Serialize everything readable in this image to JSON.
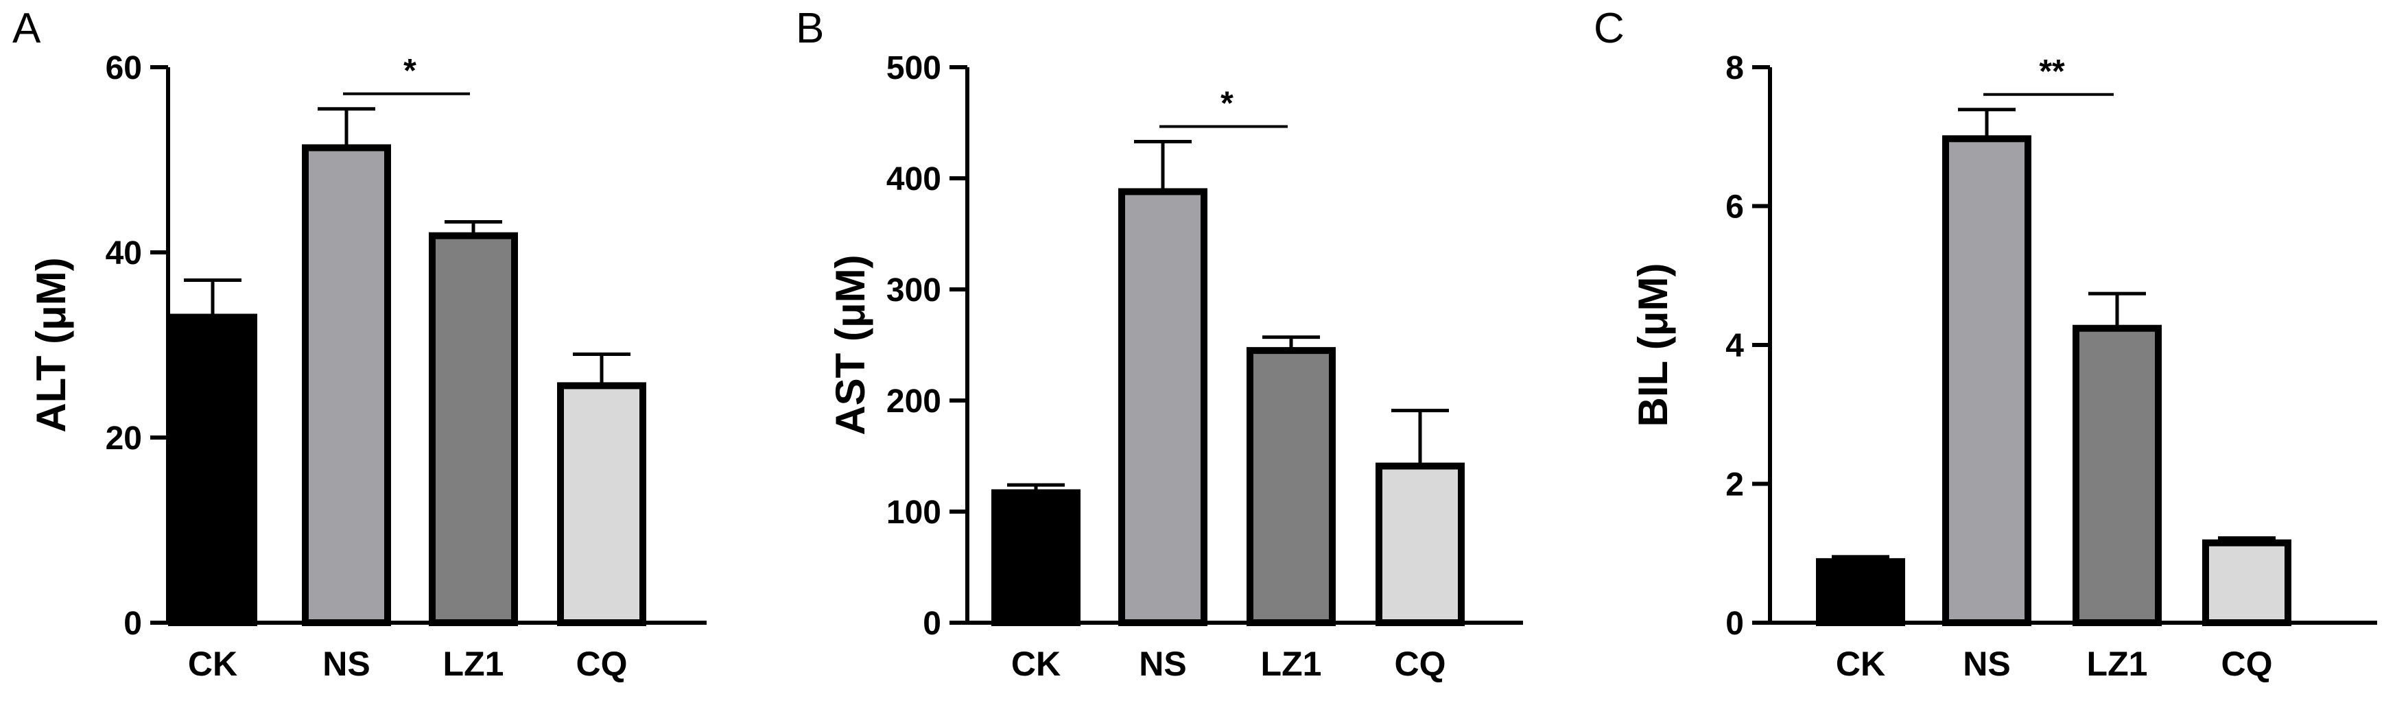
{
  "chart_data": [
    {
      "panel": "A",
      "type": "bar",
      "categories": [
        "CK",
        "NS",
        "LZ1",
        "CQ"
      ],
      "values": [
        33,
        51.3,
        41.8,
        25.6
      ],
      "errors": [
        4,
        4.2,
        1.5,
        3.4
      ],
      "ylabel": "ALT (μM)",
      "xlabel": "",
      "ylim": [
        0,
        60
      ],
      "yticks": [
        0,
        20,
        40,
        60
      ],
      "significance": {
        "from": "NS",
        "to": "LZ1",
        "label": "*"
      }
    },
    {
      "panel": "B",
      "type": "bar",
      "categories": [
        "CK",
        "NS",
        "LZ1",
        "CQ"
      ],
      "values": [
        117,
        388,
        245,
        141
      ],
      "errors": [
        7,
        45,
        12,
        50
      ],
      "ylabel": "AST (μM)",
      "xlabel": "",
      "ylim": [
        0,
        500
      ],
      "yticks": [
        0,
        100,
        200,
        300,
        400,
        500
      ],
      "significance": {
        "from": "NS",
        "to": "LZ1",
        "label": "*"
      }
    },
    {
      "panel": "C",
      "type": "bar",
      "categories": [
        "CK",
        "NS",
        "LZ1",
        "CQ"
      ],
      "values": [
        0.88,
        6.97,
        4.24,
        1.15
      ],
      "errors": [
        0.07,
        0.42,
        0.5,
        0.07
      ],
      "ylabel": "BIL (μM)",
      "xlabel": "",
      "ylim": [
        0,
        8
      ],
      "yticks": [
        0,
        2,
        4,
        6,
        8
      ],
      "significance": {
        "from": "NS",
        "to": "LZ1",
        "label": "**"
      }
    }
  ],
  "style": {
    "bar_colors": [
      "#000000",
      "#a2a1a6",
      "#7f7f7f",
      "#d9d9d9"
    ],
    "stroke_color": "#000000",
    "background": "#ffffff",
    "grid": false
  }
}
